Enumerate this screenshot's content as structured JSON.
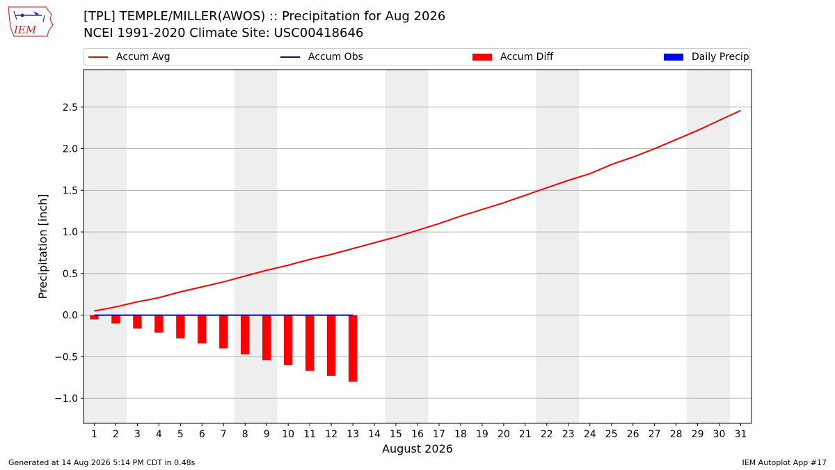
{
  "header": {
    "title_line1": "[TPL] TEMPLE/MILLER(AWOS) :: Precipitation for Aug 2026",
    "title_line2": "NCEI 1991-2020 Climate Site: USC00418646",
    "logo_text": "IEM"
  },
  "legend": {
    "items": [
      {
        "label": "Accum Avg",
        "color": "#ff0000",
        "kind": "line"
      },
      {
        "label": "Accum Obs",
        "color": "#0000ff",
        "kind": "line"
      },
      {
        "label": "Accum Diff",
        "color": "#ff0000",
        "kind": "box"
      },
      {
        "label": "Daily Precip",
        "color": "#0000ff",
        "kind": "box"
      }
    ]
  },
  "footer": {
    "left": "Generated at 14 Aug 2026 5:14 PM CDT in 0.48s",
    "right": "IEM Autoplot App #17"
  },
  "chart_data": {
    "type": "line",
    "xlabel": "August 2026",
    "ylabel": "Precipitation [inch]",
    "xlim": [
      0.5,
      31.5
    ],
    "ylim": [
      -1.3,
      2.95
    ],
    "x": [
      1,
      2,
      3,
      4,
      5,
      6,
      7,
      8,
      9,
      10,
      11,
      12,
      13,
      14,
      15,
      16,
      17,
      18,
      19,
      20,
      21,
      22,
      23,
      24,
      25,
      26,
      27,
      28,
      29,
      30,
      31
    ],
    "yticks": [
      -1.0,
      -0.5,
      0.0,
      0.5,
      1.0,
      1.5,
      2.0,
      2.5
    ],
    "ytick_labels": [
      "−1.0",
      "−0.5",
      "0.0",
      "0.5",
      "1.0",
      "1.5",
      "2.0",
      "2.5"
    ],
    "xtick_labels": [
      "1",
      "2",
      "3",
      "4",
      "5",
      "6",
      "7",
      "8",
      "9",
      "10",
      "11",
      "12",
      "13",
      "14",
      "15",
      "16",
      "17",
      "18",
      "19",
      "20",
      "21",
      "22",
      "23",
      "24",
      "25",
      "26",
      "27",
      "28",
      "29",
      "30",
      "31"
    ],
    "weekend_shading": [
      [
        0.5,
        2.5
      ],
      [
        7.5,
        9.5
      ],
      [
        14.5,
        16.5
      ],
      [
        21.5,
        23.5
      ],
      [
        28.5,
        30.5
      ]
    ],
    "grid": "horizontal",
    "series": [
      {
        "name": "Accum Avg",
        "color": "#ff0000",
        "x": [
          1,
          2,
          3,
          4,
          5,
          6,
          7,
          8,
          9,
          10,
          11,
          12,
          13,
          14,
          15,
          16,
          17,
          18,
          19,
          20,
          21,
          22,
          23,
          24,
          25,
          26,
          27,
          28,
          29,
          30,
          31
        ],
        "values": [
          0.05,
          0.1,
          0.16,
          0.21,
          0.28,
          0.34,
          0.4,
          0.47,
          0.54,
          0.6,
          0.67,
          0.73,
          0.8,
          0.87,
          0.94,
          1.02,
          1.1,
          1.19,
          1.27,
          1.35,
          1.44,
          1.53,
          1.62,
          1.7,
          1.81,
          1.9,
          2.0,
          2.11,
          2.22,
          2.34,
          2.46
        ]
      },
      {
        "name": "Accum Obs",
        "color": "#0000ff",
        "x": [
          1,
          2,
          3,
          4,
          5,
          6,
          7,
          8,
          9,
          10,
          11,
          12,
          13
        ],
        "values": [
          0,
          0,
          0,
          0,
          0,
          0,
          0,
          0,
          0,
          0,
          0,
          0,
          0
        ]
      },
      {
        "name": "Accum Diff",
        "color": "#ff0000",
        "x": [
          1,
          2,
          3,
          4,
          5,
          6,
          7,
          8,
          9,
          10,
          11,
          12,
          13
        ],
        "values": [
          -0.05,
          -0.1,
          -0.16,
          -0.21,
          -0.28,
          -0.34,
          -0.4,
          -0.47,
          -0.54,
          -0.6,
          -0.67,
          -0.73,
          -0.8
        ]
      },
      {
        "name": "Daily Precip",
        "color": "#0000ff",
        "x": [
          1,
          2,
          3,
          4,
          5,
          6,
          7,
          8,
          9,
          10,
          11,
          12,
          13
        ],
        "values": [
          0,
          0,
          0,
          0,
          0,
          0,
          0,
          0,
          0,
          0,
          0,
          0,
          0
        ]
      }
    ]
  }
}
